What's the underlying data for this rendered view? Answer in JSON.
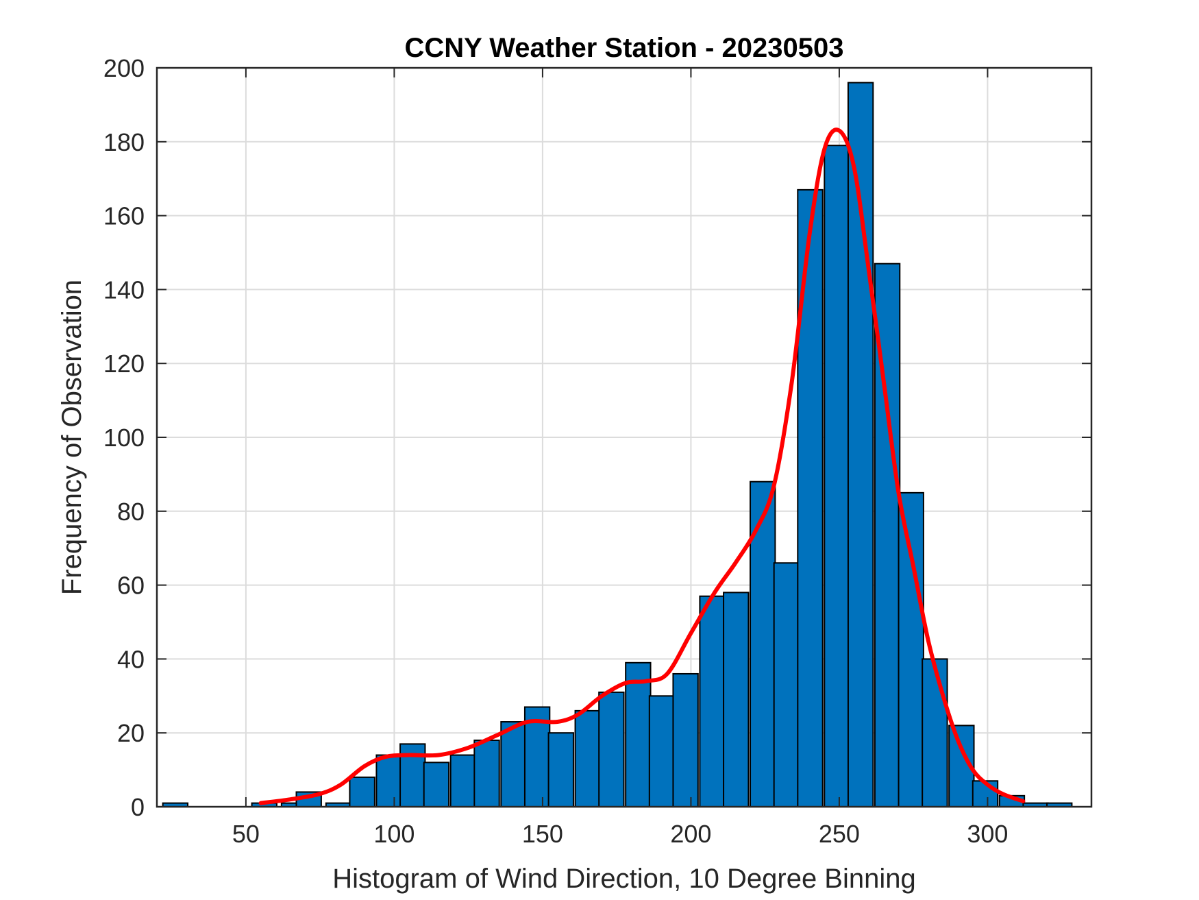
{
  "chart_data": {
    "type": "bar",
    "title": "CCNY Weather Station - 20230503",
    "xlabel": "Histogram of Wind Direction, 10 Degree Binning",
    "ylabel": "Frequency of Observation",
    "xlim": [
      20,
      335
    ],
    "ylim": [
      0,
      200
    ],
    "xticks": [
      50,
      100,
      150,
      200,
      250,
      300
    ],
    "yticks": [
      0,
      20,
      40,
      60,
      80,
      100,
      120,
      140,
      160,
      180,
      200
    ],
    "grid": true,
    "bin_width": 10,
    "bins": [
      {
        "x0": 22,
        "count": 1
      },
      {
        "x0": 32,
        "count": 0
      },
      {
        "x0": 42,
        "count": 0
      },
      {
        "x0": 52,
        "count": 1
      },
      {
        "x0": 62,
        "count": 1
      },
      {
        "x0": 67,
        "count": 4
      },
      {
        "x0": 77,
        "count": 1
      },
      {
        "x0": 85,
        "count": 8
      },
      {
        "x0": 94,
        "count": 14
      },
      {
        "x0": 102,
        "count": 17
      },
      {
        "x0": 110,
        "count": 12
      },
      {
        "x0": 119,
        "count": 14
      },
      {
        "x0": 127,
        "count": 18
      },
      {
        "x0": 136,
        "count": 23
      },
      {
        "x0": 144,
        "count": 27
      },
      {
        "x0": 152,
        "count": 20
      },
      {
        "x0": 161,
        "count": 26
      },
      {
        "x0": 169,
        "count": 31
      },
      {
        "x0": 178,
        "count": 39
      },
      {
        "x0": 186,
        "count": 30
      },
      {
        "x0": 194,
        "count": 36
      },
      {
        "x0": 203,
        "count": 57
      },
      {
        "x0": 211,
        "count": 58
      },
      {
        "x0": 220,
        "count": 88
      },
      {
        "x0": 228,
        "count": 66
      },
      {
        "x0": 236,
        "count": 167
      },
      {
        "x0": 245,
        "count": 179
      },
      {
        "x0": 253,
        "count": 196
      },
      {
        "x0": 262,
        "count": 147
      },
      {
        "x0": 270,
        "count": 85
      },
      {
        "x0": 278,
        "count": 40
      },
      {
        "x0": 287,
        "count": 22
      },
      {
        "x0": 295,
        "count": 7
      },
      {
        "x0": 304,
        "count": 3
      },
      {
        "x0": 312,
        "count": 1
      },
      {
        "x0": 320,
        "count": 1
      }
    ],
    "bar_width": 8.4,
    "bar_color": "#0072BD",
    "bar_edge_color": "#000000",
    "curve": {
      "name": "density fit",
      "color": "#FF0000",
      "points": [
        [
          55,
          1
        ],
        [
          65,
          2
        ],
        [
          75,
          3.5
        ],
        [
          82,
          6
        ],
        [
          90,
          11
        ],
        [
          97,
          13.5
        ],
        [
          105,
          14
        ],
        [
          115,
          14
        ],
        [
          125,
          16
        ],
        [
          135,
          19.5
        ],
        [
          145,
          23
        ],
        [
          155,
          23
        ],
        [
          162,
          25
        ],
        [
          170,
          30
        ],
        [
          178,
          33.5
        ],
        [
          185,
          34
        ],
        [
          192,
          36
        ],
        [
          200,
          47
        ],
        [
          208,
          58
        ],
        [
          215,
          66
        ],
        [
          222,
          75
        ],
        [
          228,
          87
        ],
        [
          234,
          115
        ],
        [
          240,
          155
        ],
        [
          245,
          178
        ],
        [
          250,
          183
        ],
        [
          255,
          173
        ],
        [
          260,
          145
        ],
        [
          265,
          115
        ],
        [
          270,
          85
        ],
        [
          275,
          65
        ],
        [
          280,
          45
        ],
        [
          285,
          30
        ],
        [
          290,
          18
        ],
        [
          295,
          10
        ],
        [
          300,
          6
        ],
        [
          305,
          3.5
        ],
        [
          312,
          1.5
        ]
      ]
    }
  }
}
